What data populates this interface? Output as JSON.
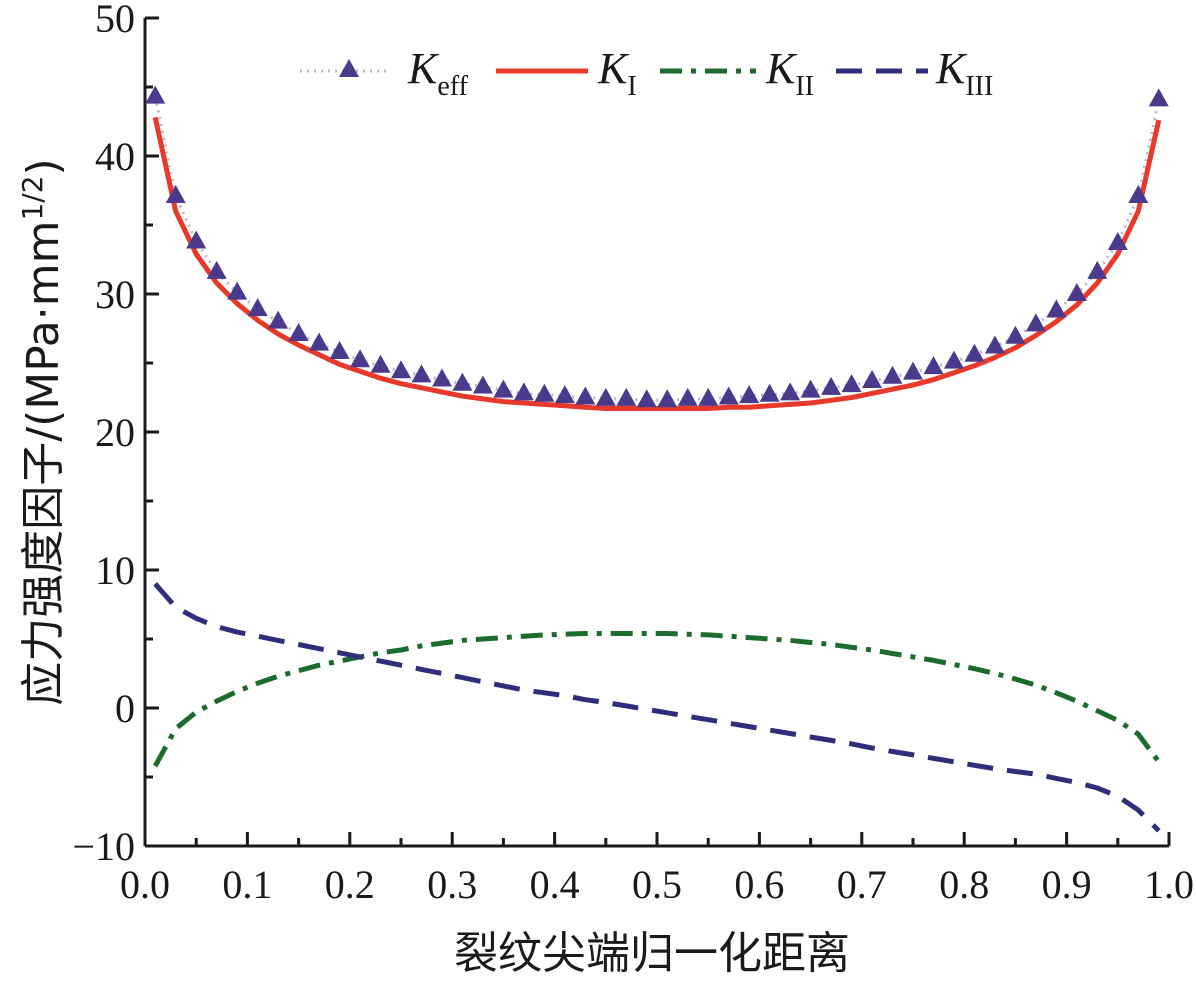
{
  "chart_data": {
    "type": "line",
    "title": "",
    "xlabel": "裂纹尖端归一化距离",
    "ylabel": "应力强度因子/(MPa·mm1/2)",
    "ylabel_parts": {
      "main": "应力强度因子/(MPa·mm",
      "sup": "1/2",
      "close": ")"
    },
    "xlim": [
      0.0,
      1.0
    ],
    "ylim": [
      -10,
      50
    ],
    "x_ticks": [
      0.0,
      0.1,
      0.2,
      0.3,
      0.4,
      0.5,
      0.6,
      0.7,
      0.8,
      0.9,
      1.0
    ],
    "x_tick_labels": [
      "0.0",
      "0.1",
      "0.2",
      "0.3",
      "0.4",
      "0.5",
      "0.6",
      "0.7",
      "0.8",
      "0.9",
      "1.0"
    ],
    "y_ticks": [
      -10,
      0,
      10,
      20,
      30,
      40,
      50
    ],
    "y_tick_labels": [
      "−10",
      "0",
      "10",
      "20",
      "30",
      "40",
      "50"
    ],
    "legend_position": "top-center",
    "series": [
      {
        "key": "keff",
        "name_main": "K",
        "name_sub": "eff",
        "color": "#4b3a8c",
        "line_color": "#b8b8c8",
        "style": "dotted-triangles",
        "x": [
          0.01,
          0.03,
          0.05,
          0.07,
          0.09,
          0.11,
          0.13,
          0.15,
          0.17,
          0.19,
          0.21,
          0.23,
          0.25,
          0.27,
          0.29,
          0.31,
          0.33,
          0.35,
          0.37,
          0.39,
          0.41,
          0.43,
          0.45,
          0.47,
          0.49,
          0.51,
          0.53,
          0.55,
          0.57,
          0.59,
          0.61,
          0.63,
          0.65,
          0.67,
          0.69,
          0.71,
          0.73,
          0.75,
          0.77,
          0.79,
          0.81,
          0.83,
          0.85,
          0.87,
          0.89,
          0.91,
          0.93,
          0.95,
          0.97,
          0.99
        ],
        "y": [
          44.3,
          37.1,
          33.8,
          31.6,
          30.1,
          28.9,
          28.0,
          27.1,
          26.4,
          25.8,
          25.2,
          24.8,
          24.4,
          24.1,
          23.8,
          23.5,
          23.3,
          23.0,
          22.8,
          22.7,
          22.6,
          22.5,
          22.4,
          22.4,
          22.3,
          22.3,
          22.4,
          22.4,
          22.5,
          22.6,
          22.7,
          22.8,
          23.0,
          23.2,
          23.4,
          23.7,
          24.0,
          24.3,
          24.7,
          25.1,
          25.6,
          26.2,
          26.9,
          27.8,
          28.8,
          30.0,
          31.6,
          33.7,
          37.1,
          44.1
        ]
      },
      {
        "key": "k1",
        "name_main": "K",
        "name_sub": "I",
        "color": "#e8392a",
        "style": "solid",
        "x": [
          0.01,
          0.03,
          0.05,
          0.07,
          0.09,
          0.11,
          0.13,
          0.15,
          0.17,
          0.19,
          0.21,
          0.23,
          0.25,
          0.27,
          0.29,
          0.31,
          0.33,
          0.35,
          0.37,
          0.39,
          0.41,
          0.43,
          0.45,
          0.47,
          0.49,
          0.51,
          0.53,
          0.55,
          0.57,
          0.59,
          0.61,
          0.63,
          0.65,
          0.67,
          0.69,
          0.71,
          0.73,
          0.75,
          0.77,
          0.79,
          0.81,
          0.83,
          0.85,
          0.87,
          0.89,
          0.91,
          0.93,
          0.95,
          0.97,
          0.99
        ],
        "y": [
          42.8,
          36.0,
          32.9,
          30.8,
          29.3,
          28.1,
          27.1,
          26.3,
          25.6,
          24.9,
          24.4,
          23.9,
          23.5,
          23.2,
          22.9,
          22.6,
          22.4,
          22.2,
          22.1,
          22.0,
          21.9,
          21.8,
          21.7,
          21.7,
          21.7,
          21.7,
          21.7,
          21.7,
          21.8,
          21.8,
          21.9,
          22.0,
          22.1,
          22.3,
          22.5,
          22.8,
          23.1,
          23.4,
          23.8,
          24.3,
          24.8,
          25.4,
          26.1,
          27.0,
          28.0,
          29.2,
          30.8,
          32.9,
          36.0,
          42.6
        ]
      },
      {
        "key": "k2",
        "name_main": "K",
        "name_sub": "II",
        "color": "#1e6b2e",
        "style": "dash-dot",
        "x": [
          0.01,
          0.03,
          0.05,
          0.07,
          0.09,
          0.11,
          0.13,
          0.15,
          0.17,
          0.19,
          0.21,
          0.23,
          0.25,
          0.27,
          0.29,
          0.31,
          0.33,
          0.35,
          0.37,
          0.39,
          0.41,
          0.43,
          0.45,
          0.47,
          0.49,
          0.51,
          0.53,
          0.55,
          0.57,
          0.59,
          0.61,
          0.63,
          0.65,
          0.67,
          0.69,
          0.71,
          0.73,
          0.75,
          0.77,
          0.79,
          0.81,
          0.83,
          0.85,
          0.87,
          0.89,
          0.91,
          0.93,
          0.95,
          0.97,
          0.99
        ],
        "y": [
          -4.2,
          -1.5,
          -0.3,
          0.5,
          1.2,
          1.8,
          2.3,
          2.7,
          3.1,
          3.4,
          3.7,
          4.0,
          4.2,
          4.5,
          4.7,
          4.9,
          5.0,
          5.1,
          5.2,
          5.3,
          5.35,
          5.4,
          5.4,
          5.4,
          5.4,
          5.4,
          5.35,
          5.3,
          5.2,
          5.1,
          5.0,
          4.9,
          4.75,
          4.6,
          4.4,
          4.2,
          3.95,
          3.7,
          3.45,
          3.15,
          2.85,
          2.5,
          2.1,
          1.65,
          1.1,
          0.5,
          -0.2,
          -0.9,
          -1.9,
          -3.9
        ]
      },
      {
        "key": "k3",
        "name_main": "K",
        "name_sub": "III",
        "color": "#2e2e7a",
        "style": "dashed",
        "x": [
          0.01,
          0.03,
          0.05,
          0.07,
          0.09,
          0.11,
          0.13,
          0.15,
          0.17,
          0.19,
          0.21,
          0.23,
          0.25,
          0.27,
          0.29,
          0.31,
          0.33,
          0.35,
          0.37,
          0.39,
          0.41,
          0.43,
          0.45,
          0.47,
          0.49,
          0.51,
          0.53,
          0.55,
          0.57,
          0.59,
          0.61,
          0.63,
          0.65,
          0.67,
          0.69,
          0.71,
          0.73,
          0.75,
          0.77,
          0.79,
          0.81,
          0.83,
          0.85,
          0.87,
          0.89,
          0.91,
          0.93,
          0.95,
          0.97,
          0.99
        ],
        "y": [
          9.0,
          7.3,
          6.5,
          5.9,
          5.5,
          5.2,
          4.9,
          4.6,
          4.3,
          4.0,
          3.7,
          3.4,
          3.1,
          2.8,
          2.5,
          2.2,
          1.9,
          1.6,
          1.3,
          1.1,
          0.9,
          0.6,
          0.4,
          0.15,
          -0.1,
          -0.35,
          -0.6,
          -0.85,
          -1.1,
          -1.35,
          -1.6,
          -1.85,
          -2.1,
          -2.35,
          -2.6,
          -2.9,
          -3.15,
          -3.4,
          -3.65,
          -3.9,
          -4.15,
          -4.4,
          -4.6,
          -4.8,
          -5.1,
          -5.4,
          -5.8,
          -6.4,
          -7.4,
          -8.9
        ]
      }
    ]
  }
}
